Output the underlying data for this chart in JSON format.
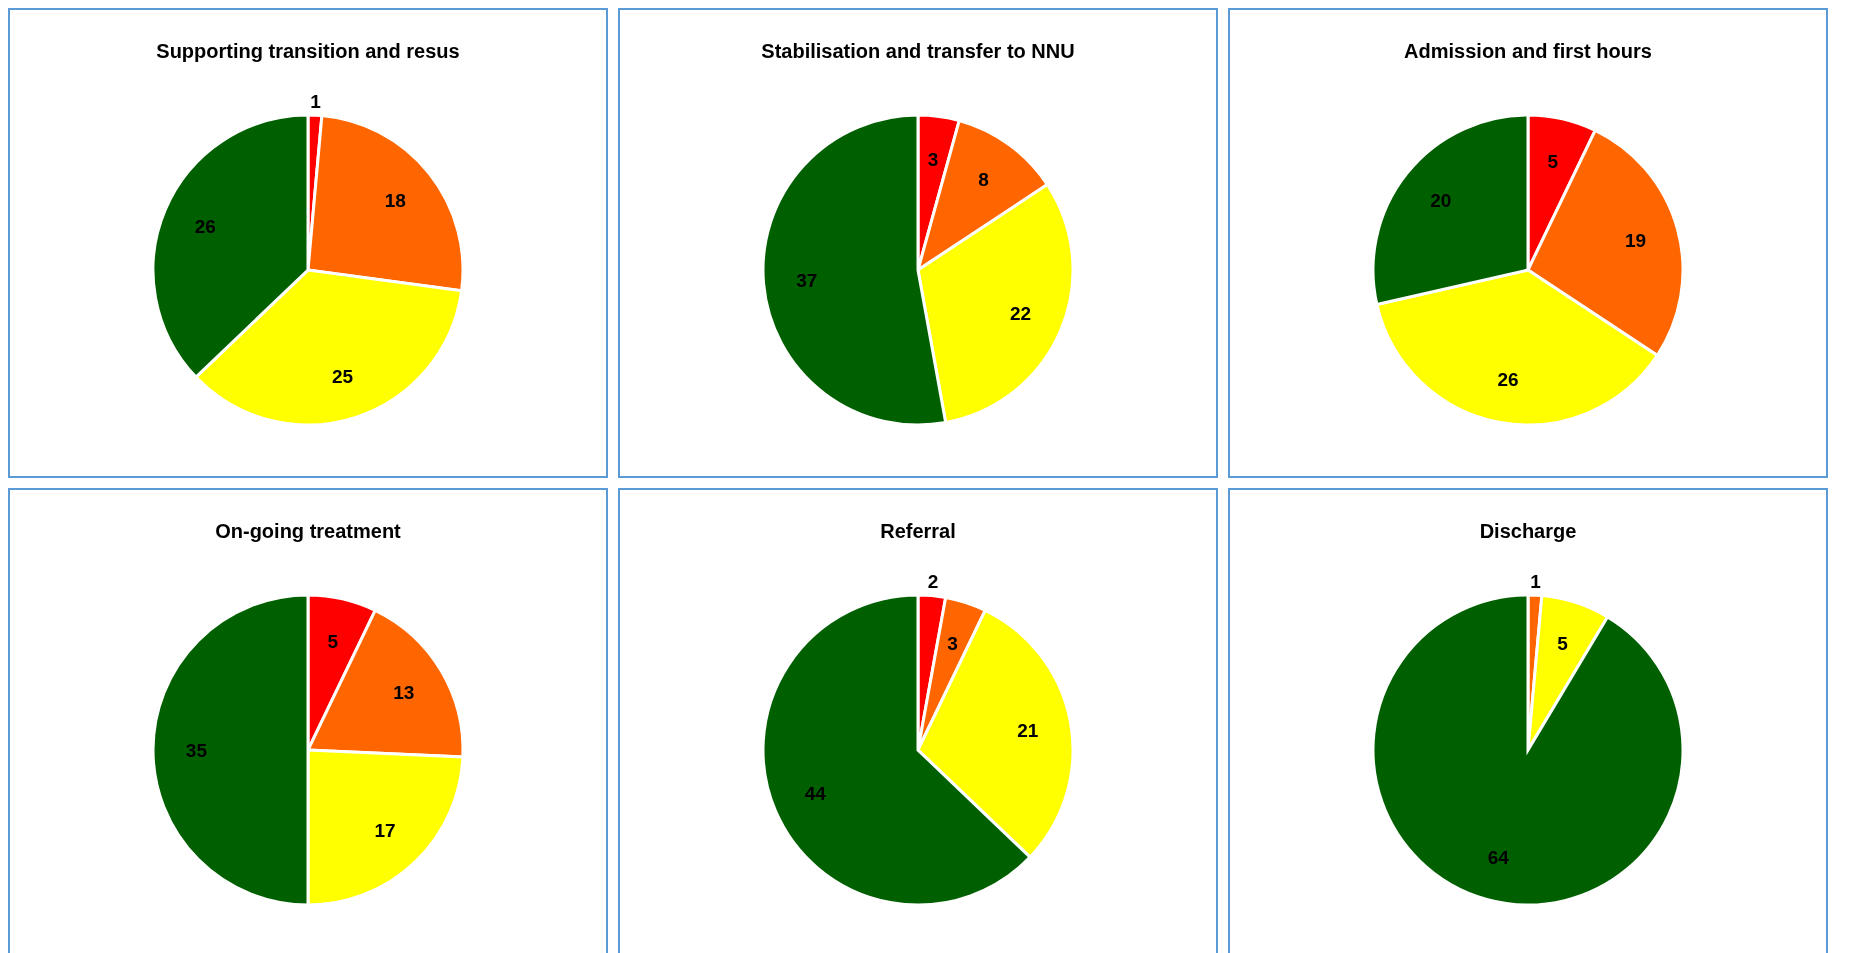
{
  "chart_data": [
    {
      "type": "pie",
      "title": "Supporting transition and resus",
      "categories": [
        null,
        null,
        null,
        null
      ],
      "values": [
        1,
        18,
        25,
        26
      ],
      "colors": [
        "#ff0000",
        "#ff6600",
        "#ffff00",
        "#006000"
      ],
      "data_labels": true
    },
    {
      "type": "pie",
      "title": "Stabilisation and transfer to NNU",
      "categories": [
        null,
        null,
        null,
        null
      ],
      "values": [
        3,
        8,
        22,
        37
      ],
      "colors": [
        "#ff0000",
        "#ff6600",
        "#ffff00",
        "#006000"
      ],
      "data_labels": true
    },
    {
      "type": "pie",
      "title": "Admission and first hours",
      "categories": [
        null,
        null,
        null,
        null
      ],
      "values": [
        5,
        19,
        26,
        20
      ],
      "colors": [
        "#ff0000",
        "#ff6600",
        "#ffff00",
        "#006000"
      ],
      "data_labels": true
    },
    {
      "type": "pie",
      "title": "On-going treatment",
      "categories": [
        null,
        null,
        null,
        null
      ],
      "values": [
        5,
        13,
        17,
        35
      ],
      "colors": [
        "#ff0000",
        "#ff6600",
        "#ffff00",
        "#006000"
      ],
      "data_labels": true
    },
    {
      "type": "pie",
      "title": "Referral",
      "categories": [
        null,
        null,
        null,
        null
      ],
      "values": [
        2,
        3,
        21,
        44
      ],
      "colors": [
        "#ff0000",
        "#ff6600",
        "#ffff00",
        "#006000"
      ],
      "data_labels": true
    },
    {
      "type": "pie",
      "title": "Discharge",
      "categories": [
        null,
        null,
        null
      ],
      "values": [
        1,
        5,
        64
      ],
      "colors": [
        "#ff6600",
        "#ffff00",
        "#006000"
      ],
      "data_labels": true
    }
  ]
}
